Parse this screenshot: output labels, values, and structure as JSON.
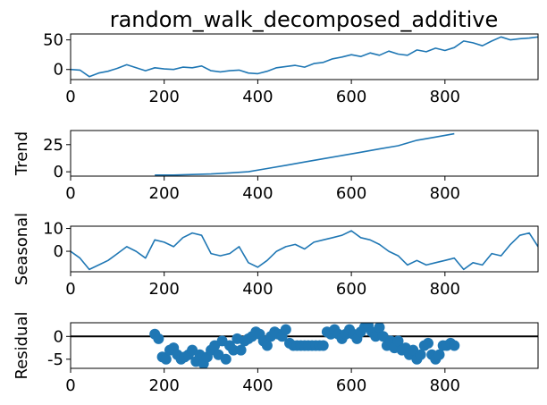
{
  "chart_data": [
    {
      "type": "line",
      "panel": "observed",
      "title": "random_walk_decomposed_additive",
      "ylabel": "",
      "xlim": [
        0,
        999
      ],
      "ylim": [
        -17,
        60
      ],
      "xticks": [
        "0",
        "200",
        "400",
        "600",
        "800"
      ],
      "yticks": [
        "0",
        "50"
      ],
      "color": "#1f77b4",
      "series": [
        {
          "x": [
            0,
            20,
            40,
            60,
            80,
            100,
            120,
            140,
            160,
            180,
            200,
            220,
            240,
            260,
            280,
            300,
            320,
            340,
            360,
            380,
            400,
            420,
            440,
            460,
            480,
            500,
            520,
            540,
            560,
            580,
            600,
            620,
            640,
            660,
            680,
            700,
            720,
            740,
            760,
            780,
            800,
            820,
            840,
            860,
            880,
            900,
            920,
            940,
            960,
            980,
            999
          ],
          "values": [
            0,
            -1,
            -12,
            -6,
            -3,
            2,
            8,
            3,
            -2,
            3,
            1,
            0,
            4,
            3,
            6,
            -2,
            -4,
            -2,
            -1,
            -6,
            -7,
            -3,
            3,
            5,
            7,
            4,
            10,
            12,
            18,
            21,
            25,
            22,
            28,
            24,
            31,
            26,
            24,
            33,
            30,
            36,
            32,
            37,
            48,
            45,
            40,
            48,
            55,
            50,
            52,
            53,
            55
          ]
        }
      ]
    },
    {
      "type": "line",
      "panel": "trend",
      "title": "",
      "ylabel": "Trend",
      "xlim": [
        0,
        999
      ],
      "ylim": [
        -4,
        38
      ],
      "xticks": [
        "0",
        "200",
        "400",
        "600",
        "800"
      ],
      "yticks": [
        "0",
        "25"
      ],
      "color": "#1f77b4",
      "series": [
        {
          "x": [
            180,
            220,
            260,
            300,
            340,
            380,
            420,
            460,
            500,
            540,
            580,
            620,
            660,
            700,
            740,
            780,
            820
          ],
          "values": [
            -3,
            -3,
            -2.5,
            -2,
            -1,
            0,
            3,
            6,
            9,
            12,
            15,
            18,
            21,
            24,
            29,
            32,
            35
          ]
        }
      ]
    },
    {
      "type": "line",
      "panel": "seasonal",
      "title": "",
      "ylabel": "Seasonal",
      "xlim": [
        0,
        999
      ],
      "ylim": [
        -9,
        11
      ],
      "xticks": [
        "0",
        "200",
        "400",
        "600",
        "800"
      ],
      "yticks": [
        "0",
        "10"
      ],
      "color": "#1f77b4",
      "series": [
        {
          "x": [
            0,
            20,
            40,
            60,
            80,
            100,
            120,
            140,
            160,
            180,
            200,
            220,
            240,
            260,
            280,
            300,
            320,
            340,
            360,
            380,
            400,
            420,
            440,
            460,
            480,
            500,
            520,
            540,
            560,
            580,
            600,
            620,
            640,
            660,
            680,
            700,
            720,
            740,
            760,
            780,
            800,
            820,
            840,
            860,
            880,
            900,
            920,
            940,
            960,
            980,
            999
          ],
          "values": [
            0,
            -3,
            -8,
            -6,
            -4,
            -1,
            2,
            0,
            -3,
            5,
            4,
            2,
            6,
            8,
            7,
            -1,
            -2,
            -1,
            2,
            -5,
            -7,
            -4,
            0,
            2,
            3,
            1,
            4,
            5,
            6,
            7,
            9,
            6,
            5,
            3,
            0,
            -2,
            -6,
            -4,
            -6,
            -5,
            -4,
            -3,
            -8,
            -5,
            -6,
            -1,
            -2,
            3,
            7,
            8,
            2
          ]
        }
      ]
    },
    {
      "type": "scatter",
      "panel": "residual",
      "title": "",
      "ylabel": "Residual",
      "xlim": [
        0,
        999
      ],
      "ylim": [
        -7,
        3
      ],
      "xticks": [
        "0",
        "200",
        "400",
        "600",
        "800"
      ],
      "yticks": [
        "-5",
        "0"
      ],
      "color": "#1f77b4",
      "baseline": 0,
      "series": [
        {
          "x": [
            180,
            188,
            196,
            204,
            212,
            220,
            228,
            236,
            244,
            252,
            260,
            268,
            276,
            284,
            292,
            300,
            308,
            316,
            324,
            332,
            340,
            348,
            356,
            364,
            372,
            380,
            388,
            396,
            404,
            412,
            420,
            428,
            436,
            444,
            452,
            460,
            468,
            476,
            484,
            492,
            500,
            508,
            516,
            524,
            532,
            540,
            548,
            556,
            564,
            572,
            580,
            588,
            596,
            604,
            612,
            620,
            628,
            636,
            644,
            652,
            660,
            668,
            676,
            684,
            692,
            700,
            708,
            716,
            724,
            732,
            740,
            748,
            756,
            764,
            772,
            780,
            788,
            796,
            804,
            812,
            820
          ],
          "values": [
            0.5,
            -0.5,
            -4.5,
            -5,
            -3,
            -2.5,
            -4,
            -5,
            -4.5,
            -4,
            -3,
            -5.5,
            -4,
            -6,
            -4.5,
            -3,
            -2,
            -4,
            -1,
            -5,
            -2,
            -3,
            -0.5,
            -3,
            -1,
            -0.5,
            0,
            1,
            0.5,
            -1,
            -2,
            0,
            1,
            0.5,
            0,
            1.5,
            -1.5,
            -2,
            -2,
            -2,
            -2,
            -2,
            -2,
            -2,
            -2,
            -2,
            1,
            0.5,
            1.5,
            0.5,
            -0.5,
            0.5,
            1.5,
            0.5,
            -0.5,
            1,
            2,
            2.5,
            1,
            0,
            2,
            0,
            -2,
            -1,
            -2.5,
            -1,
            -3,
            -2.5,
            -4,
            -3,
            -5,
            -4,
            -2,
            -1.5,
            -4,
            -5,
            -4,
            -2,
            -2,
            -1.5,
            -2
          ]
        }
      ]
    }
  ]
}
